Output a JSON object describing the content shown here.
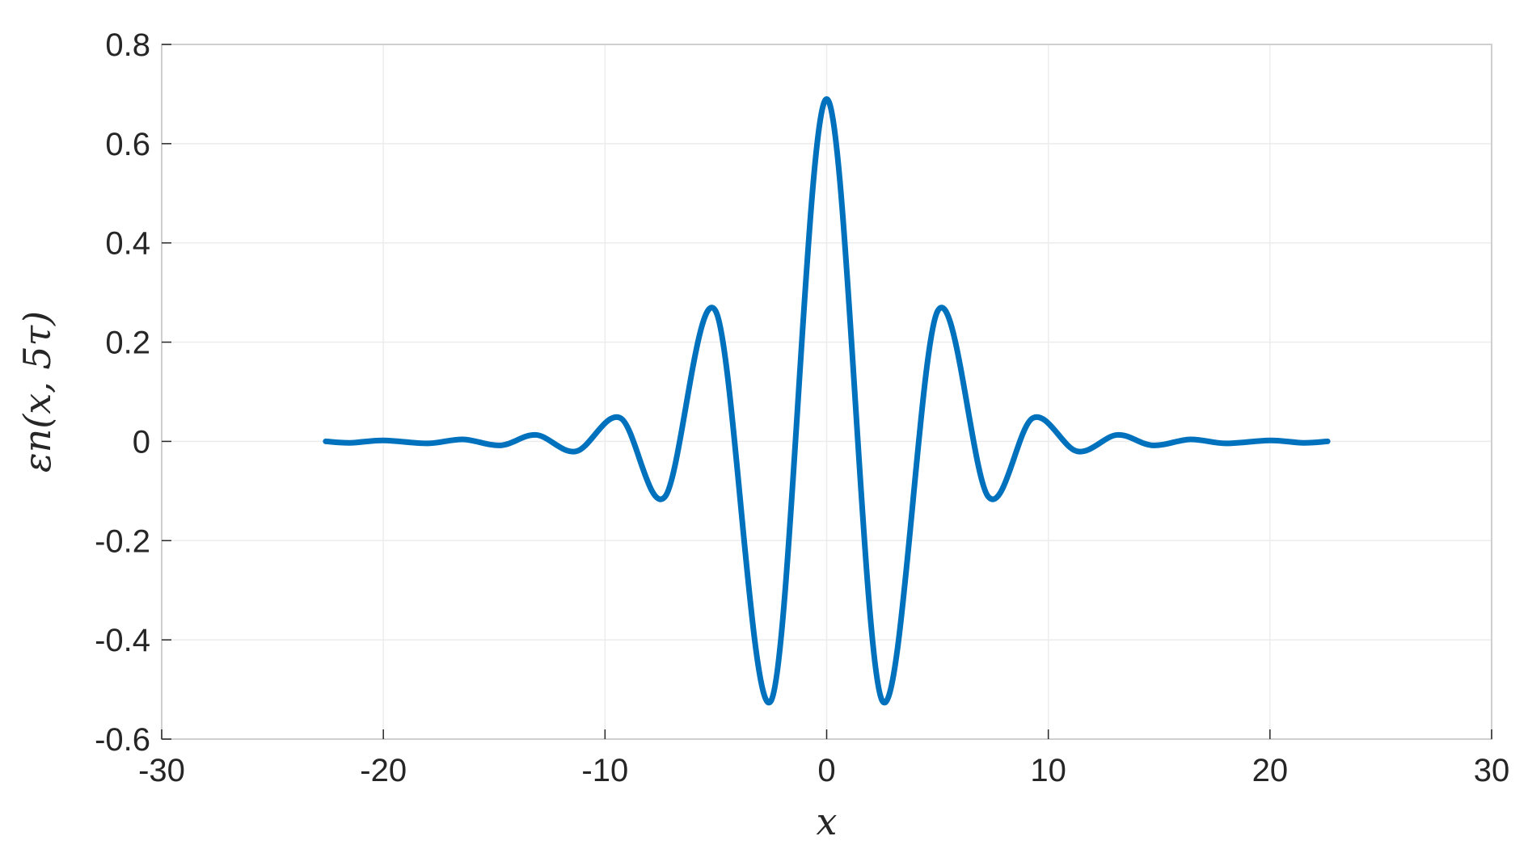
{
  "chart_data": {
    "type": "line",
    "title": "",
    "xlabel": "x",
    "ylabel": "εn(x, 5τ)",
    "xlim": [
      -30,
      30
    ],
    "ylim": [
      -0.6,
      0.8
    ],
    "xticks": [
      -30,
      -20,
      -10,
      0,
      10,
      20,
      30
    ],
    "yticks": [
      -0.6,
      -0.4,
      -0.2,
      0,
      0.2,
      0.4,
      0.6,
      0.8
    ],
    "xtick_labels": [
      "-30",
      "-20",
      "-10",
      "0",
      "10",
      "20",
      "30"
    ],
    "ytick_labels": [
      "-0.6",
      "-0.4",
      "-0.2",
      "0",
      "0.2",
      "0.4",
      "0.6",
      "0.8"
    ],
    "grid": true,
    "series": [
      {
        "color": "#0072BD",
        "x": [
          -22.6,
          -21.5,
          -20.0,
          -18.0,
          -16.4,
          -14.7,
          -13.1,
          -11.3,
          -9.3,
          -7.3,
          -5.0,
          -2.5,
          0.0,
          2.5,
          5.0,
          7.3,
          9.3,
          11.3,
          13.1,
          14.7,
          16.4,
          18.0,
          20.0,
          21.5,
          22.6
        ],
        "y": [
          0.0,
          -0.003,
          0.002,
          -0.004,
          0.004,
          -0.008,
          0.013,
          -0.02,
          0.047,
          -0.112,
          0.262,
          -0.522,
          0.69,
          -0.522,
          0.262,
          -0.112,
          0.047,
          -0.02,
          0.013,
          -0.008,
          0.004,
          -0.004,
          0.002,
          -0.003,
          0.0
        ]
      }
    ]
  }
}
